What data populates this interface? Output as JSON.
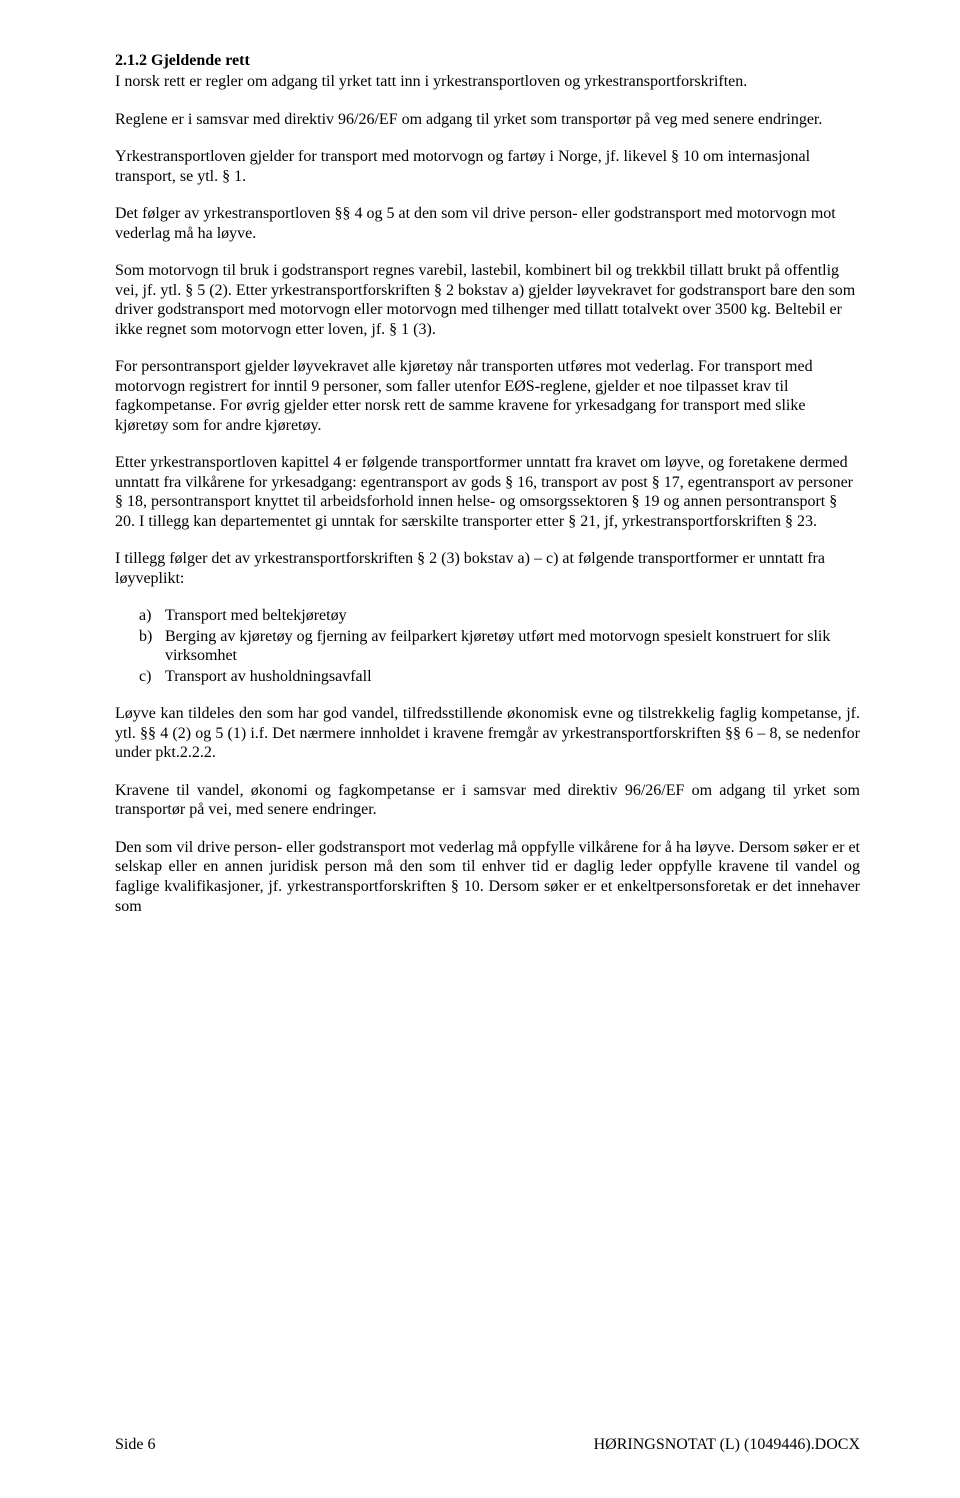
{
  "heading": "2.1.2 Gjeldende rett",
  "p1": "I norsk rett er regler om adgang til yrket tatt inn i yrkestransportloven og yrkestransportforskriften.",
  "p2": "Reglene er i samsvar med direktiv 96/26/EF om adgang til yrket som transportør på veg med senere endringer.",
  "p3": "Yrkestransportloven gjelder for transport med motorvogn og fartøy i Norge, jf. likevel § 10 om internasjonal transport, se ytl. § 1.",
  "p4": "Det følger av yrkestransportloven §§ 4 og 5 at den som vil drive person- eller godstransport med motorvogn mot vederlag må ha løyve.",
  "p5": "Som motorvogn til bruk i godstransport regnes varebil, lastebil, kombinert bil og trekkbil tillatt brukt på offentlig vei, jf. ytl. § 5 (2). Etter yrkestransportforskriften § 2 bokstav a) gjelder løyvekravet for godstransport bare den som driver godstransport med motorvogn eller motorvogn med tilhenger med tillatt totalvekt over 3500 kg. Beltebil er ikke regnet som motorvogn etter loven, jf. § 1 (3).",
  "p6": "For persontransport gjelder løyvekravet alle kjøretøy når transporten utføres mot vederlag. For transport med motorvogn registrert for inntil 9 personer, som faller utenfor EØS-reglene, gjelder et noe tilpasset krav til fagkompetanse. For øvrig gjelder etter norsk rett de samme kravene for yrkesadgang for transport med slike kjøretøy som for andre kjøretøy.",
  "p7": "Etter yrkestransportloven kapittel 4 er følgende transportformer unntatt fra kravet om løyve, og foretakene dermed unntatt fra vilkårene for yrkesadgang: egentransport av gods § 16, transport av post § 17, egentransport av personer § 18, persontransport knyttet til arbeidsforhold innen helse- og omsorgssektoren § 19 og annen persontransport § 20. I tillegg kan departementet gi unntak for særskilte transporter etter § 21, jf, yrkestransportforskriften § 23.",
  "p8": "I tillegg følger det av yrkestransportforskriften § 2 (3) bokstav a) – c) at følgende transportformer er unntatt fra løyveplikt:",
  "list": {
    "a": {
      "marker": "a)",
      "text": "Transport med beltekjøretøy"
    },
    "b": {
      "marker": "b)",
      "text": "Berging av kjøretøy og fjerning av feilparkert kjøretøy utført med motorvogn spesielt konstruert for slik virksomhet"
    },
    "c": {
      "marker": "c)",
      "text": "Transport av husholdningsavfall"
    }
  },
  "p9": "Løyve kan tildeles den som har god vandel, tilfredsstillende økonomisk evne og tilstrekkelig faglig kompetanse, jf. ytl. §§ 4 (2) og 5 (1) i.f. Det nærmere innholdet i kravene fremgår av yrkestransportforskriften §§ 6 – 8, se nedenfor under pkt.2.2.2.",
  "p10": "Kravene til vandel, økonomi og fagkompetanse er i samsvar med direktiv 96/26/EF om adgang til yrket som transportør på vei, med senere endringer.",
  "p11": "Den som vil drive person- eller godstransport mot vederlag må oppfylle vilkårene for å ha løyve. Dersom søker er et selskap eller en annen juridisk person må den som til enhver tid er daglig leder oppfylle kravene til vandel og faglige kvalifikasjoner, jf. yrkestransportforskriften § 10. Dersom søker er et enkeltpersonsforetak er det innehaver som",
  "footer": {
    "left": "Side 6",
    "right": "HØRINGSNOTAT (L) (1049446).DOCX"
  }
}
